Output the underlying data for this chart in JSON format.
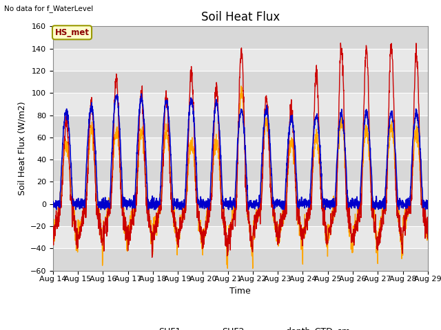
{
  "title": "Soil Heat Flux",
  "top_left_text": "No data for f_WaterLevel",
  "station_label": "HS_met",
  "ylabel": "Soil Heat Flux (W/m2)",
  "xlabel": "Time",
  "ylim": [
    -60,
    160
  ],
  "yticks": [
    -60,
    -40,
    -20,
    0,
    20,
    40,
    60,
    80,
    100,
    120,
    140,
    160
  ],
  "x_tick_labels": [
    "Aug 14",
    "Aug 15",
    "Aug 16",
    "Aug 17",
    "Aug 18",
    "Aug 19",
    "Aug 20",
    "Aug 21",
    "Aug 22",
    "Aug 23",
    "Aug 24",
    "Aug 25",
    "Aug 26",
    "Aug 27",
    "Aug 28",
    "Aug 29"
  ],
  "series": {
    "SHF1": {
      "color": "#cc0000",
      "linewidth": 1.0
    },
    "SHF2": {
      "color": "#ffa500",
      "linewidth": 1.0
    },
    "depth_CTD_cm": {
      "color": "#0000cc",
      "linewidth": 1.2
    }
  },
  "band_colors": [
    "#d8d8d8",
    "#e8e8e8"
  ],
  "grid_color": "#ffffff",
  "fig_bg": "#ffffff",
  "title_fontsize": 12,
  "label_fontsize": 9,
  "tick_fontsize": 8
}
